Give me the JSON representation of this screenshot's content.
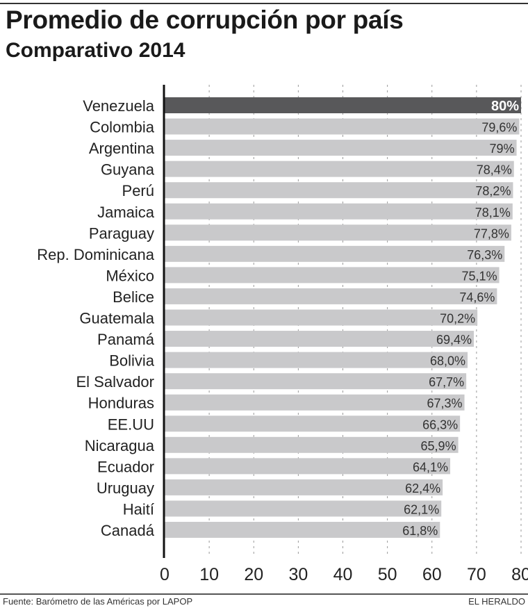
{
  "title": "Promedio de corrupción por país",
  "subtitle": "Comparativo 2014",
  "source": "Fuente: Barómetro de las Américas por LAPOP",
  "brand": "EL HERALDO",
  "colors": {
    "highlight": "#58585a",
    "bar": "#c9c9cb",
    "axis": "#111111",
    "grid": "#999999"
  },
  "chart_data": {
    "type": "bar",
    "orientation": "horizontal",
    "title": "Promedio de corrupción por país",
    "subtitle": "Comparativo 2014",
    "xlabel": "",
    "ylabel": "",
    "xlim": [
      0,
      80
    ],
    "ticks": [
      "0",
      "10",
      "20",
      "30",
      "40",
      "50",
      "60",
      "70",
      "80"
    ],
    "grid": true,
    "highlight": "Venezuela",
    "categories": [
      "Venezuela",
      "Colombia",
      "Argentina",
      "Guyana",
      "Perú",
      "Jamaica",
      "Paraguay",
      "Rep. Dominicana",
      "México",
      "Belice",
      "Guatemala",
      "Panamá",
      "Bolivia",
      "El Salvador",
      "Honduras",
      "EE.UU",
      "Nicaragua",
      "Ecuador",
      "Uruguay",
      "Haití",
      "Canadá"
    ],
    "values": [
      80,
      79.6,
      79,
      78.4,
      78.2,
      78.1,
      77.8,
      76.3,
      75.1,
      74.6,
      70.2,
      69.4,
      68.0,
      67.7,
      67.3,
      66.3,
      65.9,
      64.1,
      62.4,
      62.1,
      61.8
    ],
    "labels": [
      "80%",
      "79,6%",
      "79%",
      "78,4%",
      "78,2%",
      "78,1%",
      "77,8%",
      "76,3%",
      "75,1%",
      "74,6%",
      "70,2%",
      "69,4%",
      "68,0%",
      "67,7%",
      "67,3%",
      "66,3%",
      "65,9%",
      "64,1%",
      "62,4%",
      "62,1%",
      "61,8%"
    ]
  }
}
